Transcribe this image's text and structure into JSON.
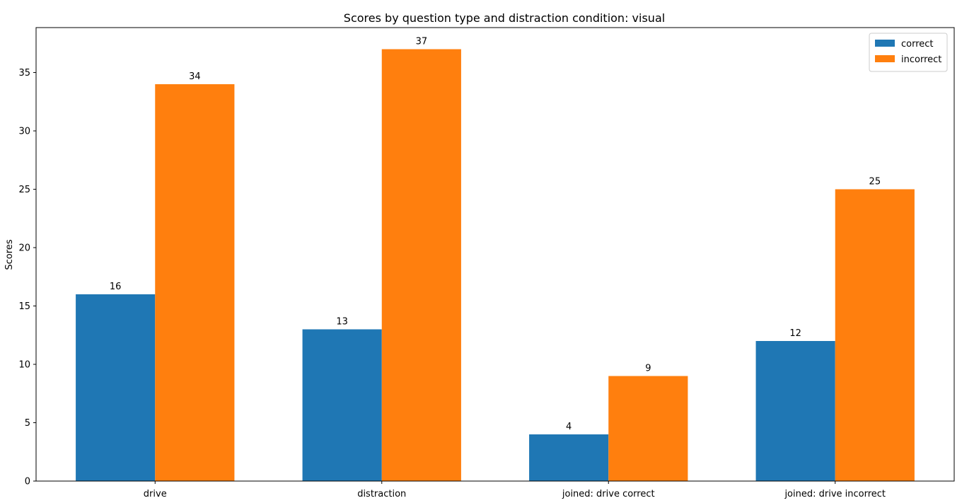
{
  "chart_data": {
    "type": "bar",
    "title": "Scores by question type and distraction condition: visual",
    "xlabel": "",
    "ylabel": "Scores",
    "categories": [
      "drive",
      "distraction",
      "joined: drive correct",
      "joined: drive incorrect"
    ],
    "series": [
      {
        "name": "correct",
        "values": [
          16,
          13,
          4,
          12
        ],
        "color": "#1f77b4"
      },
      {
        "name": "incorrect",
        "values": [
          34,
          37,
          9,
          25
        ],
        "color": "#ff7f0e"
      }
    ],
    "ylim": [
      0,
      38.85
    ],
    "yticks": [
      0,
      5,
      10,
      15,
      20,
      25,
      30,
      35
    ],
    "grid": false,
    "legend_position": "top-right",
    "show_value_labels": true
  }
}
